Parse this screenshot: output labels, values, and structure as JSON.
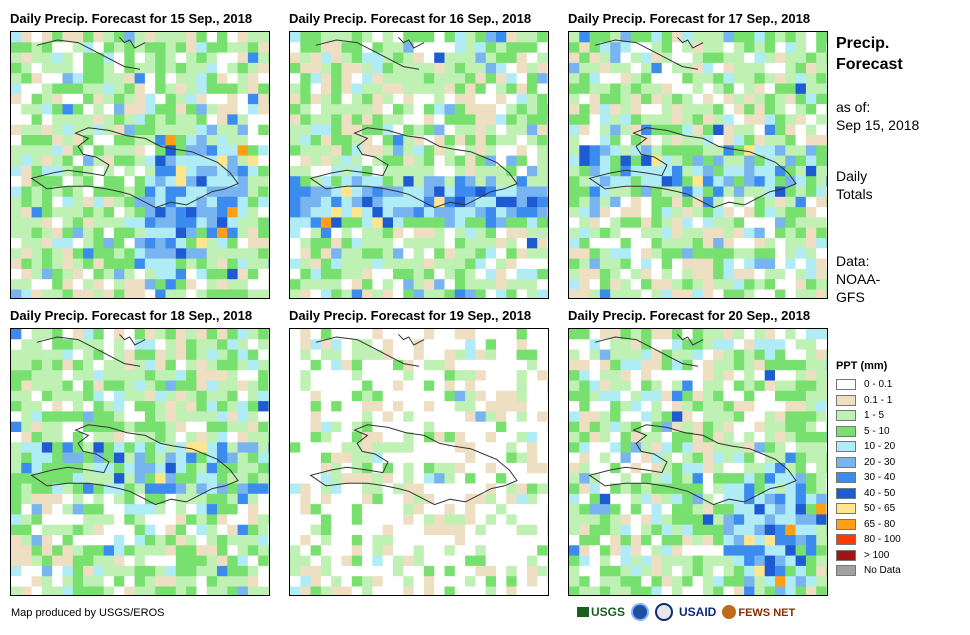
{
  "panels": [
    {
      "title": "Daily Precip. Forecast for 15 Sep., 2018",
      "seed": 11,
      "profile": "wet_east"
    },
    {
      "title": "Daily Precip. Forecast for 16 Sep., 2018",
      "seed": 23,
      "profile": "wet_band"
    },
    {
      "title": "Daily Precip. Forecast for 17 Sep., 2018",
      "seed": 37,
      "profile": "moderate"
    },
    {
      "title": "Daily Precip. Forecast for 18 Sep., 2018",
      "seed": 41,
      "profile": "moderate"
    },
    {
      "title": "Daily Precip. Forecast for 19 Sep., 2018",
      "seed": 53,
      "profile": "dry"
    },
    {
      "title": "Daily Precip. Forecast for 20 Sep., 2018",
      "seed": 67,
      "profile": "wet_southeast"
    }
  ],
  "side": {
    "title_line1": "Precip.",
    "title_line2": "Forecast",
    "asof_label": "as of:",
    "asof_date": "Sep 15, 2018",
    "totals_line1": "Daily",
    "totals_line2": "Totals",
    "data_line1": "Data:",
    "data_line2": "NOAA-",
    "data_line3": "GFS"
  },
  "legend": {
    "title": "PPT (mm)",
    "items": [
      {
        "label": "0 - 0.1",
        "color": "#ffffff"
      },
      {
        "label": "0.1 - 1",
        "color": "#eedfc3"
      },
      {
        "label": "1 - 5",
        "color": "#bff0b4"
      },
      {
        "label": "5 - 10",
        "color": "#78e06e"
      },
      {
        "label": "10 - 20",
        "color": "#b0ecf5"
      },
      {
        "label": "20 - 30",
        "color": "#78b4f0"
      },
      {
        "label": "30 - 40",
        "color": "#3c8cf0"
      },
      {
        "label": "40 - 50",
        "color": "#1e5ad2"
      },
      {
        "label": "50 - 65",
        "color": "#ffe68c"
      },
      {
        "label": "65 - 80",
        "color": "#ffa014"
      },
      {
        "label": "80 - 100",
        "color": "#ff3c00"
      },
      {
        "label": "> 100",
        "color": "#a01414"
      },
      {
        "label": "No Data",
        "color": "#a0a0a0"
      }
    ]
  },
  "credit": "Map produced by USGS/EROS",
  "logos": {
    "usgs": "USGS",
    "usaid": "USAID",
    "fewsnet": "FEWS NET"
  }
}
